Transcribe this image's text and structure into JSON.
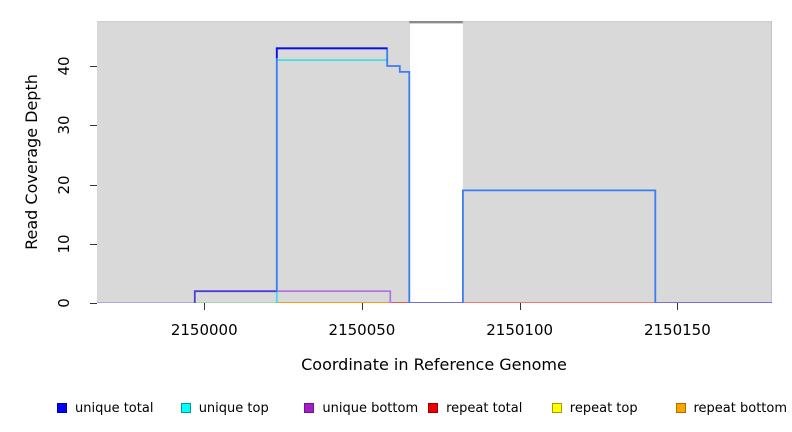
{
  "chart_data": {
    "type": "line",
    "title": "",
    "xlabel": "Coordinate in Reference Genome",
    "ylabel": "Read Coverage Depth",
    "xlim": [
      2149966,
      2150180
    ],
    "ylim": [
      0,
      47.6
    ],
    "x_ticks": [
      2150000,
      2150050,
      2150100,
      2150150
    ],
    "y_ticks": [
      0,
      10,
      20,
      30,
      40
    ],
    "background": "#d9d9d9",
    "grid": false,
    "gap_region": {
      "x_start": 2150065,
      "x_end": 2150082,
      "top_border_color": "#8a8a8a"
    },
    "series": [
      {
        "name": "baseline-left-violet",
        "color": "#ab9cec",
        "width": 1.8,
        "points": [
          [
            2149966,
            0
          ],
          [
            2149997,
            0
          ]
        ]
      },
      {
        "name": "baseline-green",
        "color": "#9cd49c",
        "width": 1.8,
        "points": [
          [
            2149997,
            0
          ],
          [
            2150023,
            0
          ]
        ]
      },
      {
        "name": "baseline-orange",
        "color": "#ff9100",
        "width": 1.8,
        "points": [
          [
            2150023,
            0
          ],
          [
            2150059,
            0
          ]
        ]
      },
      {
        "name": "baseline-red",
        "color": "#e04848",
        "width": 1.8,
        "points": [
          [
            2150059,
            0
          ],
          [
            2150065,
            0
          ]
        ]
      },
      {
        "name": "baseline-gap-violet",
        "color": "#5f58e0",
        "width": 1.8,
        "points": [
          [
            2150065,
            0
          ],
          [
            2150082,
            0
          ]
        ]
      },
      {
        "name": "baseline-repeat-total",
        "color": "#ef6a6a",
        "width": 1.8,
        "points": [
          [
            2150082,
            0
          ],
          [
            2150143,
            0
          ]
        ]
      },
      {
        "name": "baseline-right-violet",
        "color": "#6a5fe4",
        "width": 1.8,
        "points": [
          [
            2150143,
            0
          ],
          [
            2150180,
            0
          ]
        ]
      },
      {
        "name": "unique-top",
        "color": "#35dfe8",
        "width": 1.6,
        "points": [
          [
            2150023,
            0
          ],
          [
            2150023,
            41
          ],
          [
            2150058,
            41
          ]
        ]
      },
      {
        "name": "unique-bottom",
        "color": "#b06fdf",
        "width": 1.6,
        "points": [
          [
            2150023,
            2
          ],
          [
            2150059,
            2
          ],
          [
            2150059,
            0
          ]
        ]
      },
      {
        "name": "unique-total-low-step",
        "color": "#4b3fd6",
        "width": 1.8,
        "points": [
          [
            2149997,
            0
          ],
          [
            2149997,
            2
          ],
          [
            2150023,
            2
          ]
        ]
      },
      {
        "name": "coverage-peak-outline",
        "color": "#3b7df2",
        "width": 1.8,
        "points": [
          [
            2150023,
            2
          ],
          [
            2150023,
            43
          ],
          [
            2150058,
            43
          ],
          [
            2150058,
            40
          ],
          [
            2150062,
            40
          ],
          [
            2150062,
            39
          ],
          [
            2150065,
            39
          ],
          [
            2150065,
            0
          ]
        ]
      },
      {
        "name": "unique-total-peak",
        "color": "#0f0fe0",
        "width": 1.8,
        "points": [
          [
            2150023,
            41.3
          ],
          [
            2150023,
            43
          ],
          [
            2150058,
            43
          ]
        ]
      },
      {
        "name": "coverage-right-block",
        "color": "#3b7df2",
        "width": 1.8,
        "points": [
          [
            2150082,
            0
          ],
          [
            2150082,
            19
          ],
          [
            2150143,
            19
          ],
          [
            2150143,
            0
          ]
        ]
      }
    ]
  },
  "legend": [
    {
      "label": "unique total",
      "fill": "#0000ff",
      "border": "#000099"
    },
    {
      "label": "unique top",
      "fill": "#00ffff",
      "border": "#009999"
    },
    {
      "label": "unique bottom",
      "fill": "#a21fcb",
      "border": "#6e158a"
    },
    {
      "label": "repeat total",
      "fill": "#ee0000",
      "border": "#990000"
    },
    {
      "label": "repeat top",
      "fill": "#ffff00",
      "border": "#a0a000"
    },
    {
      "label": "repeat bottom",
      "fill": "#ffa500",
      "border": "#aa6e00"
    }
  ]
}
